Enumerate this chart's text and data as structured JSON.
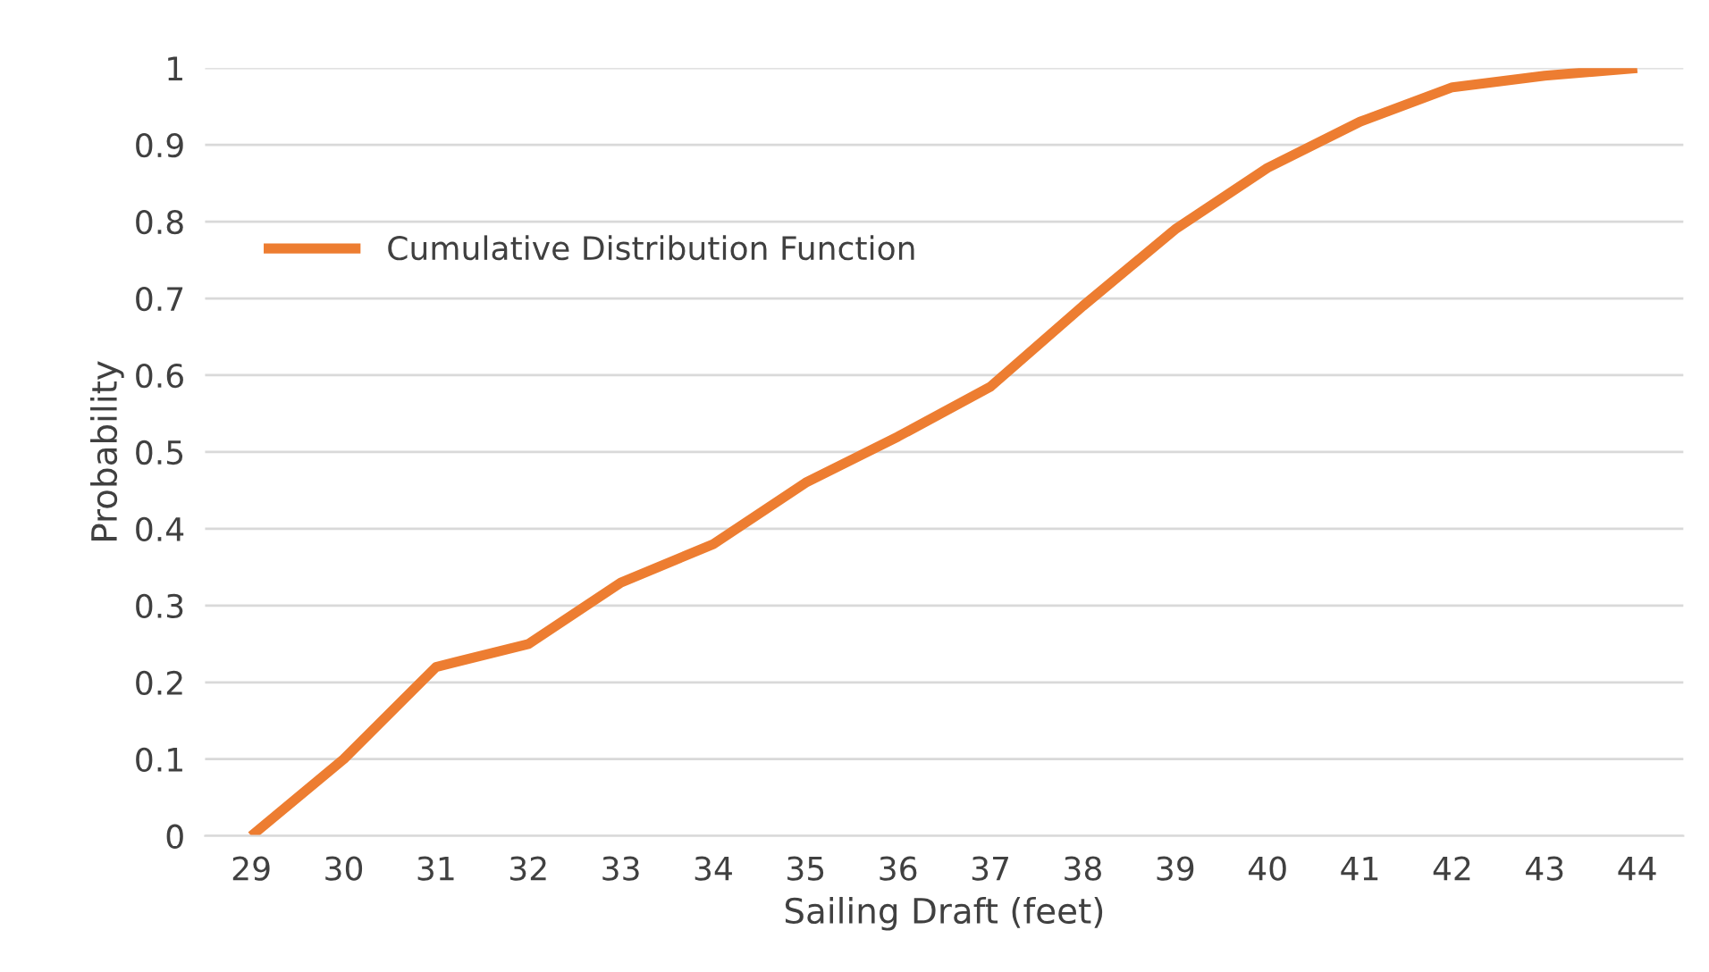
{
  "chart_data": {
    "type": "line",
    "xlabel": "Sailing Draft (feet)",
    "ylabel": "Probability",
    "categories": [
      "29",
      "30",
      "31",
      "32",
      "33",
      "34",
      "35",
      "36",
      "37",
      "38",
      "39",
      "40",
      "41",
      "42",
      "43",
      "44"
    ],
    "series": [
      {
        "name": "Cumulative Distribution Function",
        "color": "#ed7d31",
        "values": [
          0,
          0.1,
          0.22,
          0.25,
          0.33,
          0.38,
          0.46,
          0.52,
          0.585,
          0.69,
          0.79,
          0.87,
          0.93,
          0.975,
          0.99,
          1.0
        ]
      }
    ],
    "ylim": [
      0,
      1
    ],
    "yticks": [
      0,
      {
        "value": 0.1,
        "label": "0.1"
      },
      {
        "value": 0.2,
        "label": "0.2"
      },
      {
        "value": 0.3,
        "label": "0.3"
      },
      {
        "value": 0.4,
        "label": "0.4"
      },
      {
        "value": 0.5,
        "label": "0.5"
      },
      {
        "value": 0.6,
        "label": "0.6"
      },
      {
        "value": 0.7,
        "label": "0.7"
      },
      {
        "value": 0.8,
        "label": "0.8"
      },
      {
        "value": 0.9,
        "label": "0.9"
      },
      1
    ],
    "grid": "y",
    "legend": "upper left",
    "marker": "none",
    "line_style": "solid"
  }
}
